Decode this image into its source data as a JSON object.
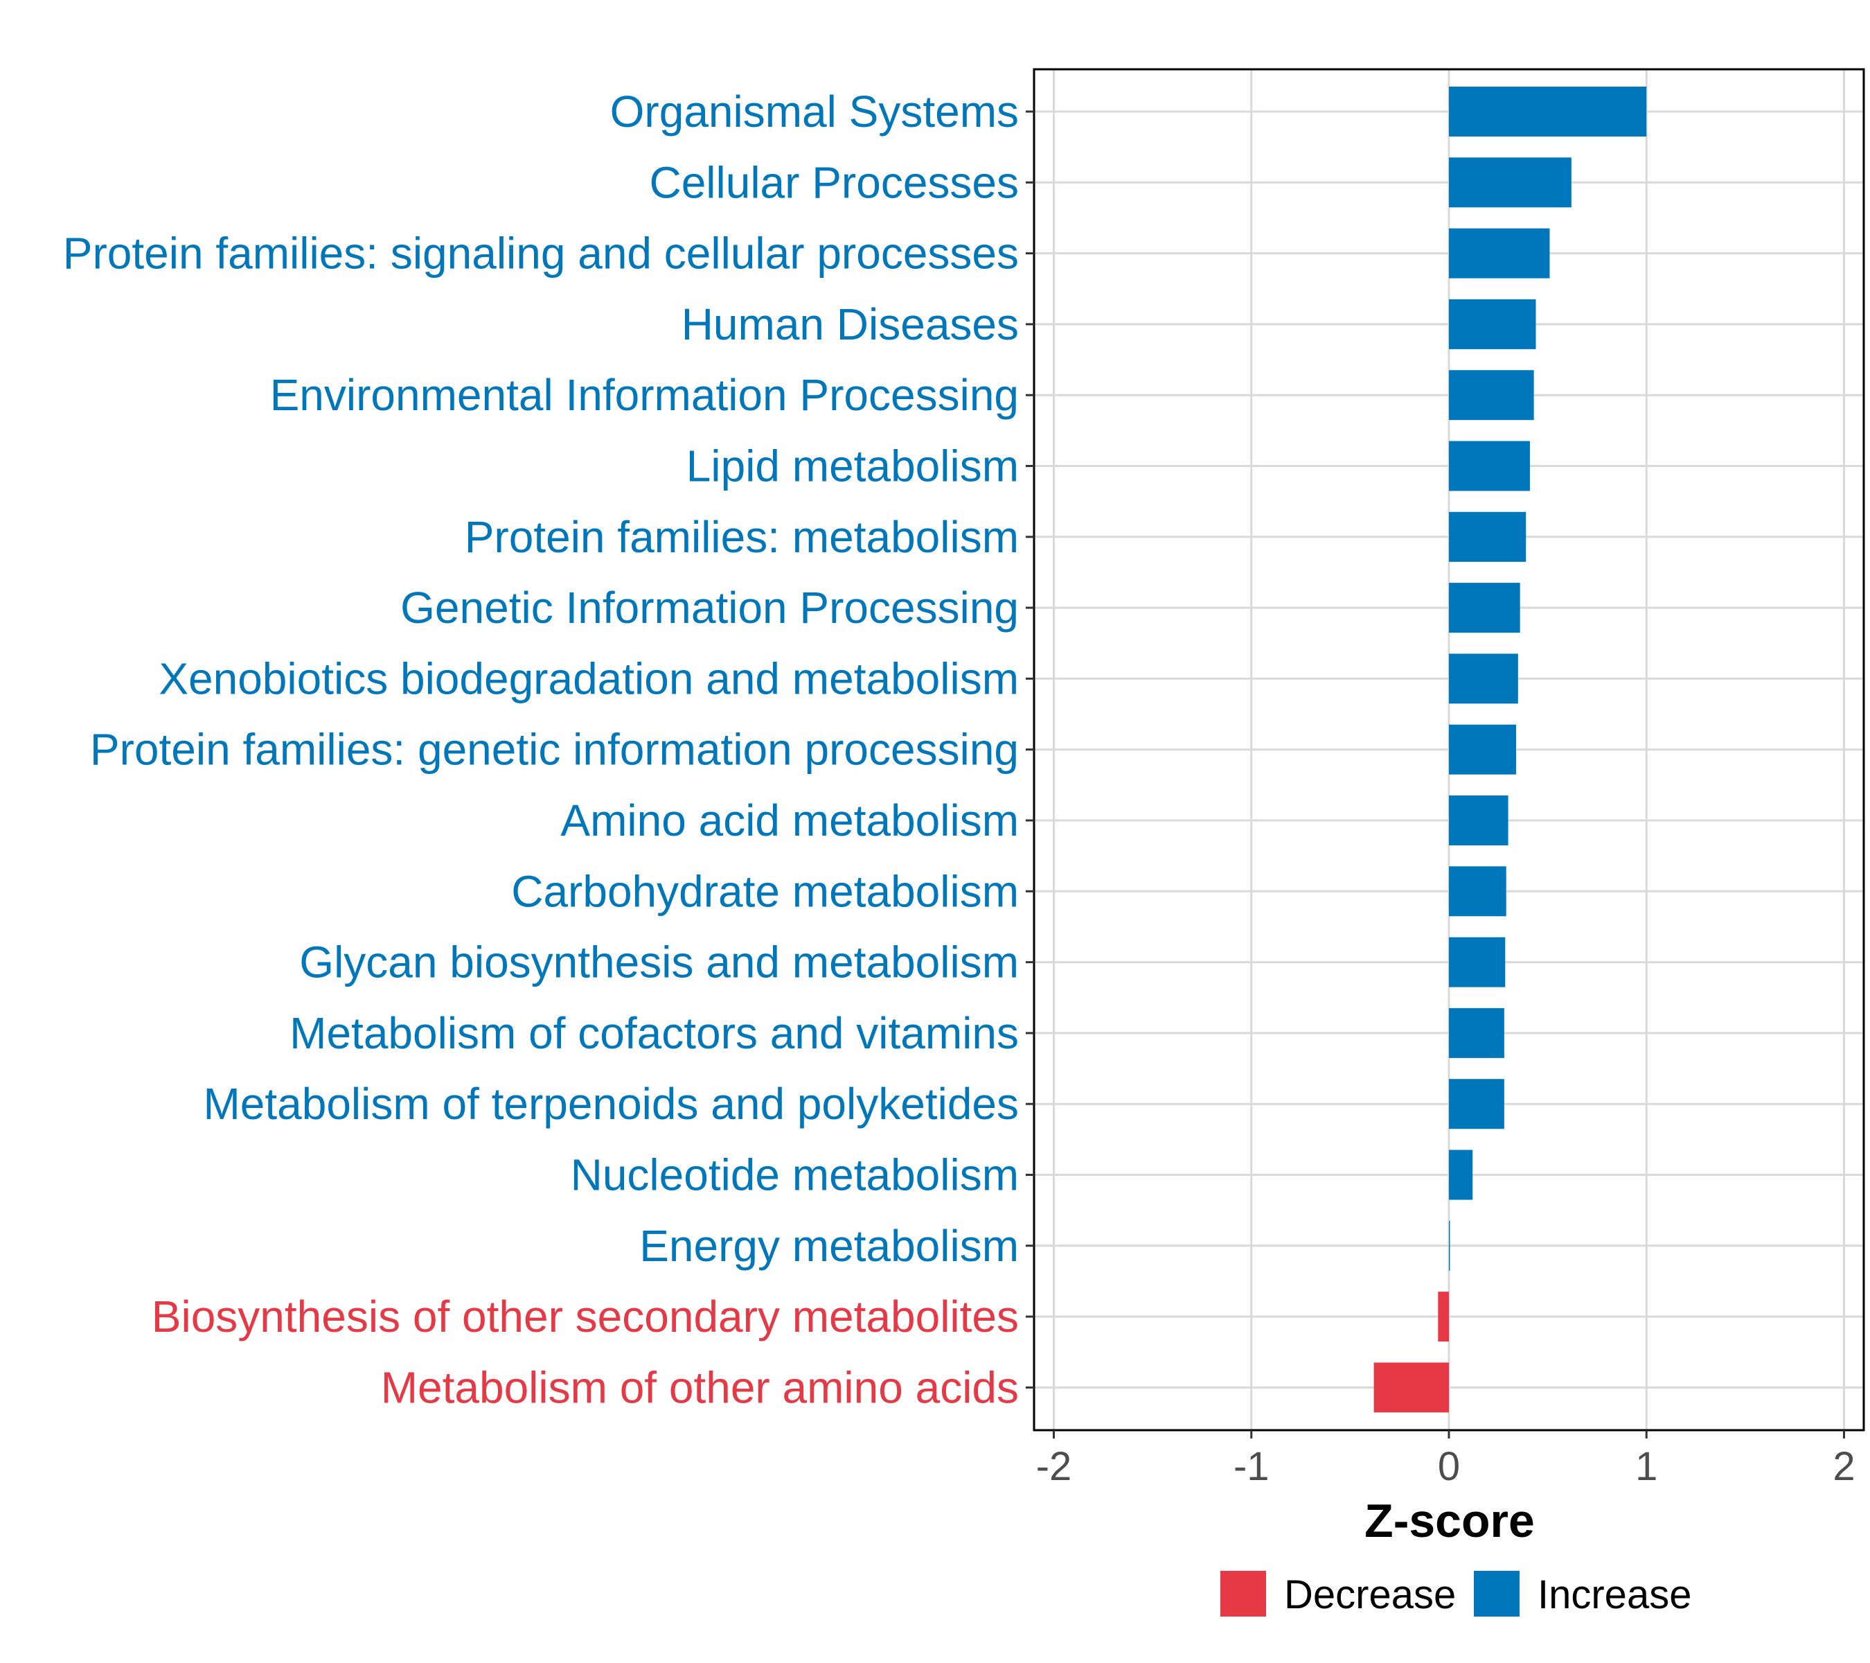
{
  "colors": {
    "increase": "#0077bb",
    "decrease": "#e63946",
    "grid": "#d9d9d9",
    "axis": "#000000"
  },
  "chart_data": {
    "type": "bar",
    "orientation": "horizontal",
    "title": "",
    "xlabel": "Z-score",
    "ylabel": "",
    "xlim": [
      -2.1,
      2.1
    ],
    "xticks": [
      -2,
      -1,
      0,
      1,
      2
    ],
    "grid": true,
    "legend_position": "bottom",
    "legend": [
      {
        "label": "Decrease",
        "color_key": "decrease"
      },
      {
        "label": "Increase",
        "color_key": "increase"
      }
    ],
    "categories": [
      "Organismal Systems",
      "Cellular Processes",
      "Protein families: signaling and cellular processes",
      "Human Diseases",
      "Environmental Information Processing",
      "Lipid metabolism",
      "Protein families: metabolism",
      "Genetic Information Processing",
      "Xenobiotics biodegradation and metabolism",
      "Protein families: genetic information processing",
      "Amino acid metabolism",
      "Carbohydrate metabolism",
      "Glycan biosynthesis and metabolism",
      "Metabolism of cofactors and vitamins",
      "Metabolism of terpenoids and polyketides",
      "Nucleotide metabolism",
      "Energy metabolism",
      "Biosynthesis of other secondary metabolites",
      "Metabolism of other amino acids"
    ],
    "values": [
      1.0,
      0.62,
      0.51,
      0.44,
      0.43,
      0.41,
      0.39,
      0.36,
      0.35,
      0.34,
      0.3,
      0.29,
      0.285,
      0.28,
      0.28,
      0.12,
      0.005,
      -0.055,
      -0.38
    ],
    "groups": [
      "Increase",
      "Increase",
      "Increase",
      "Increase",
      "Increase",
      "Increase",
      "Increase",
      "Increase",
      "Increase",
      "Increase",
      "Increase",
      "Increase",
      "Increase",
      "Increase",
      "Increase",
      "Increase",
      "Increase",
      "Decrease",
      "Decrease"
    ]
  }
}
